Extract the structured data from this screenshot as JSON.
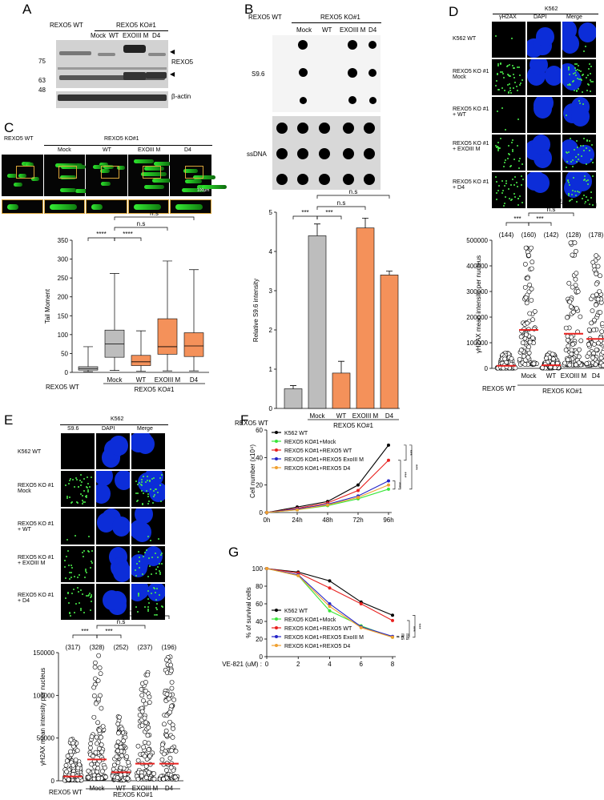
{
  "panels": {
    "A": "A",
    "B": "B",
    "C": "C",
    "D": "D",
    "E": "E",
    "F": "F",
    "G": "G"
  },
  "panel_a": {
    "wt_label": "REXO5 WT",
    "ko_label": "REXO5 KO#1",
    "lanes": [
      "Mock",
      "WT",
      "EXOIII M",
      "D4"
    ],
    "mw": [
      "75",
      "63",
      "48"
    ],
    "rexo5": "REXO5",
    "actin": "β-actin",
    "arrows": [
      "◀",
      "◀"
    ]
  },
  "panel_b": {
    "wt_label": "REXO5 WT",
    "ko_label": "REXO5 KO#1",
    "lanes": [
      "Mock",
      "WT",
      "EXOIII M",
      "D4"
    ],
    "s96": "S9.6",
    "ssdna": "ssDNA"
  },
  "panel_c": {
    "wt_label": "REXO5 WT",
    "ko_label": "REXO5 KO#1",
    "lanes": [
      "Mock",
      "WT",
      "EXOIII M",
      "D4"
    ],
    "scale": "100μm"
  },
  "panel_d": {
    "cell_line": "K562",
    "channels": [
      "γH2AX",
      "DAPI",
      "Merge"
    ],
    "rows": [
      "K562 WT",
      "REXO5 KO #1\nMock",
      "REXO5 KO #1\n+ WT",
      "REXO5 KO #1\n+ EXOIII M",
      "REXO5 KO #1\n+ D4"
    ]
  },
  "panel_e": {
    "cell_line": "K562",
    "channels": [
      "S9.6",
      "DAPI",
      "Merge"
    ],
    "rows": [
      "K562 WT",
      "REXO5 KO #1\nMock",
      "REXO5 KO #1\n+ WT",
      "REXO5 KO #1\n+ EXOIII M",
      "REXO5 KO #1\n+ D4"
    ]
  },
  "chart_data": [
    {
      "id": "B",
      "type": "bar",
      "categories": [
        "REXO5 WT",
        "Mock",
        "WT",
        "EXOIII M",
        "D4"
      ],
      "values": [
        0.5,
        4.4,
        0.9,
        4.6,
        3.4
      ],
      "errors": [
        0.08,
        0.3,
        0.3,
        0.25,
        0.1
      ],
      "colors": [
        "#bdbdbd",
        "#bdbdbd",
        "#f4915a",
        "#f4915a",
        "#f4915a"
      ],
      "ylabel": "Relative S9.6 intensity",
      "ylim": [
        0,
        5
      ],
      "yticks": [
        "0",
        "1",
        "2",
        "3",
        "4",
        "5"
      ],
      "group_label": "REXO5 WT",
      "group_label2": "REXO5 KO#1",
      "sig": [
        "***",
        "***",
        "n.s",
        "n.s"
      ]
    },
    {
      "id": "C",
      "type": "box",
      "categories": [
        "REXO5 WT",
        "Mock",
        "WT",
        "EXOIII M",
        "D4"
      ],
      "boxes": [
        {
          "min": 2,
          "q1": 6,
          "median": 10,
          "q3": 15,
          "max": 68
        },
        {
          "min": 5,
          "q1": 40,
          "median": 75,
          "q3": 112,
          "max": 262
        },
        {
          "min": 3,
          "q1": 18,
          "median": 28,
          "q3": 45,
          "max": 110
        },
        {
          "min": 4,
          "q1": 48,
          "median": 68,
          "q3": 142,
          "max": 295
        },
        {
          "min": 4,
          "q1": 42,
          "median": 70,
          "q3": 105,
          "max": 272
        }
      ],
      "colors": [
        "#bdbdbd",
        "#bdbdbd",
        "#f4915a",
        "#f4915a",
        "#f4915a"
      ],
      "ylabel": "Tail Moment",
      "ylim": [
        0,
        350
      ],
      "yticks": [
        "0",
        "50",
        "100",
        "150",
        "200",
        "250",
        "300",
        "350"
      ],
      "group_label": "REXO5 WT",
      "group_label2": "REXO5 KO#1",
      "sig": [
        "****",
        "****",
        "n.s",
        "n.s"
      ]
    },
    {
      "id": "D",
      "type": "scatter",
      "categories": [
        "REXO5 WT",
        "Mock",
        "WT",
        "EXOIII M",
        "D4"
      ],
      "counts": [
        "(144)",
        "(160)",
        "(142)",
        "(128)",
        "(178)"
      ],
      "means": [
        10000,
        150000,
        12000,
        135000,
        115000
      ],
      "maxes": [
        60000,
        470000,
        60000,
        490000,
        440000
      ],
      "ylabel": "γH2AX mean intensity per nucleus",
      "ylim": [
        0,
        500000
      ],
      "yticks": [
        "0",
        "100000",
        "200000",
        "300000",
        "400000",
        "500000"
      ],
      "group_label": "REXO5 WT",
      "group_label2": "REXO5 KO#1",
      "sig": [
        "***",
        "***",
        "n.s",
        "n.s",
        "n.s"
      ]
    },
    {
      "id": "E",
      "type": "scatter",
      "categories": [
        "REXO5 WT",
        "Mock",
        "WT",
        "EXOIII M",
        "D4"
      ],
      "counts": [
        "(317)",
        "(328)",
        "(252)",
        "(237)",
        "(196)"
      ],
      "means": [
        5000,
        25000,
        10000,
        20000,
        20000
      ],
      "maxes": [
        50000,
        148000,
        80000,
        130000,
        145000
      ],
      "ylabel": "γH2AX mean intensity per nucleus",
      "ylim": [
        0,
        150000
      ],
      "yticks": [
        "0",
        "50000",
        "100000",
        "150000"
      ],
      "group_label": "REXO5 WT",
      "group_label2": "REXO5 KO#1",
      "sig": [
        "***",
        "***",
        "n.s",
        "n.s",
        "n.s"
      ]
    },
    {
      "id": "F",
      "type": "line",
      "x": [
        "0h",
        "24h",
        "48h",
        "72h",
        "96h"
      ],
      "series": [
        {
          "name": "K562 WT",
          "color": "#000000",
          "values": [
            0,
            4,
            8,
            20,
            49
          ]
        },
        {
          "name": "REXO5 KO#1+Mock",
          "color": "#39e639",
          "values": [
            0,
            2,
            5,
            10,
            17
          ]
        },
        {
          "name": "REXO5 KO#1+REXO5 WT",
          "color": "#e8211f",
          "values": [
            0,
            3,
            7,
            16,
            38
          ]
        },
        {
          "name": "REXO5 KO#1+REXO5 ExoIII M",
          "color": "#2424c8",
          "values": [
            0,
            2.5,
            6,
            12,
            23
          ]
        },
        {
          "name": "REXO5 KO#1+REXO5 D4",
          "color": "#f0a030",
          "values": [
            0,
            2,
            5.5,
            11,
            20
          ]
        }
      ],
      "ylabel": "Cell number (x10⁴)",
      "ylim": [
        0,
        60
      ],
      "yticks": [
        "0",
        "20",
        "40",
        "60"
      ],
      "sig": [
        "***",
        "***",
        "***",
        "***"
      ]
    },
    {
      "id": "G",
      "type": "line",
      "x": [
        "0",
        "2",
        "4",
        "6",
        "8"
      ],
      "xprefix": "VE-821 (uM) :",
      "series": [
        {
          "name": "K562 WT",
          "color": "#000000",
          "values": [
            100,
            96,
            86,
            62,
            47
          ]
        },
        {
          "name": "REXO5 KO#1+Mock",
          "color": "#39e639",
          "values": [
            100,
            92,
            52,
            35,
            22
          ]
        },
        {
          "name": "REXO5 KO#1+REXO5 WT",
          "color": "#e8211f",
          "values": [
            100,
            95,
            78,
            60,
            41
          ]
        },
        {
          "name": "REXO5 KO#1+REXO5 ExoIII M",
          "color": "#2424c8",
          "values": [
            100,
            93,
            60,
            34,
            23
          ]
        },
        {
          "name": "REXO5 KO#1+REXO5 D4",
          "color": "#f0a030",
          "values": [
            100,
            92,
            57,
            33,
            22
          ]
        }
      ],
      "ylabel": "% of survival cells",
      "ylim": [
        0,
        100
      ],
      "yticks": [
        "0",
        "20",
        "40",
        "60",
        "80",
        "100"
      ],
      "sig": [
        "n.s",
        "n.s",
        "***",
        "***"
      ]
    }
  ]
}
